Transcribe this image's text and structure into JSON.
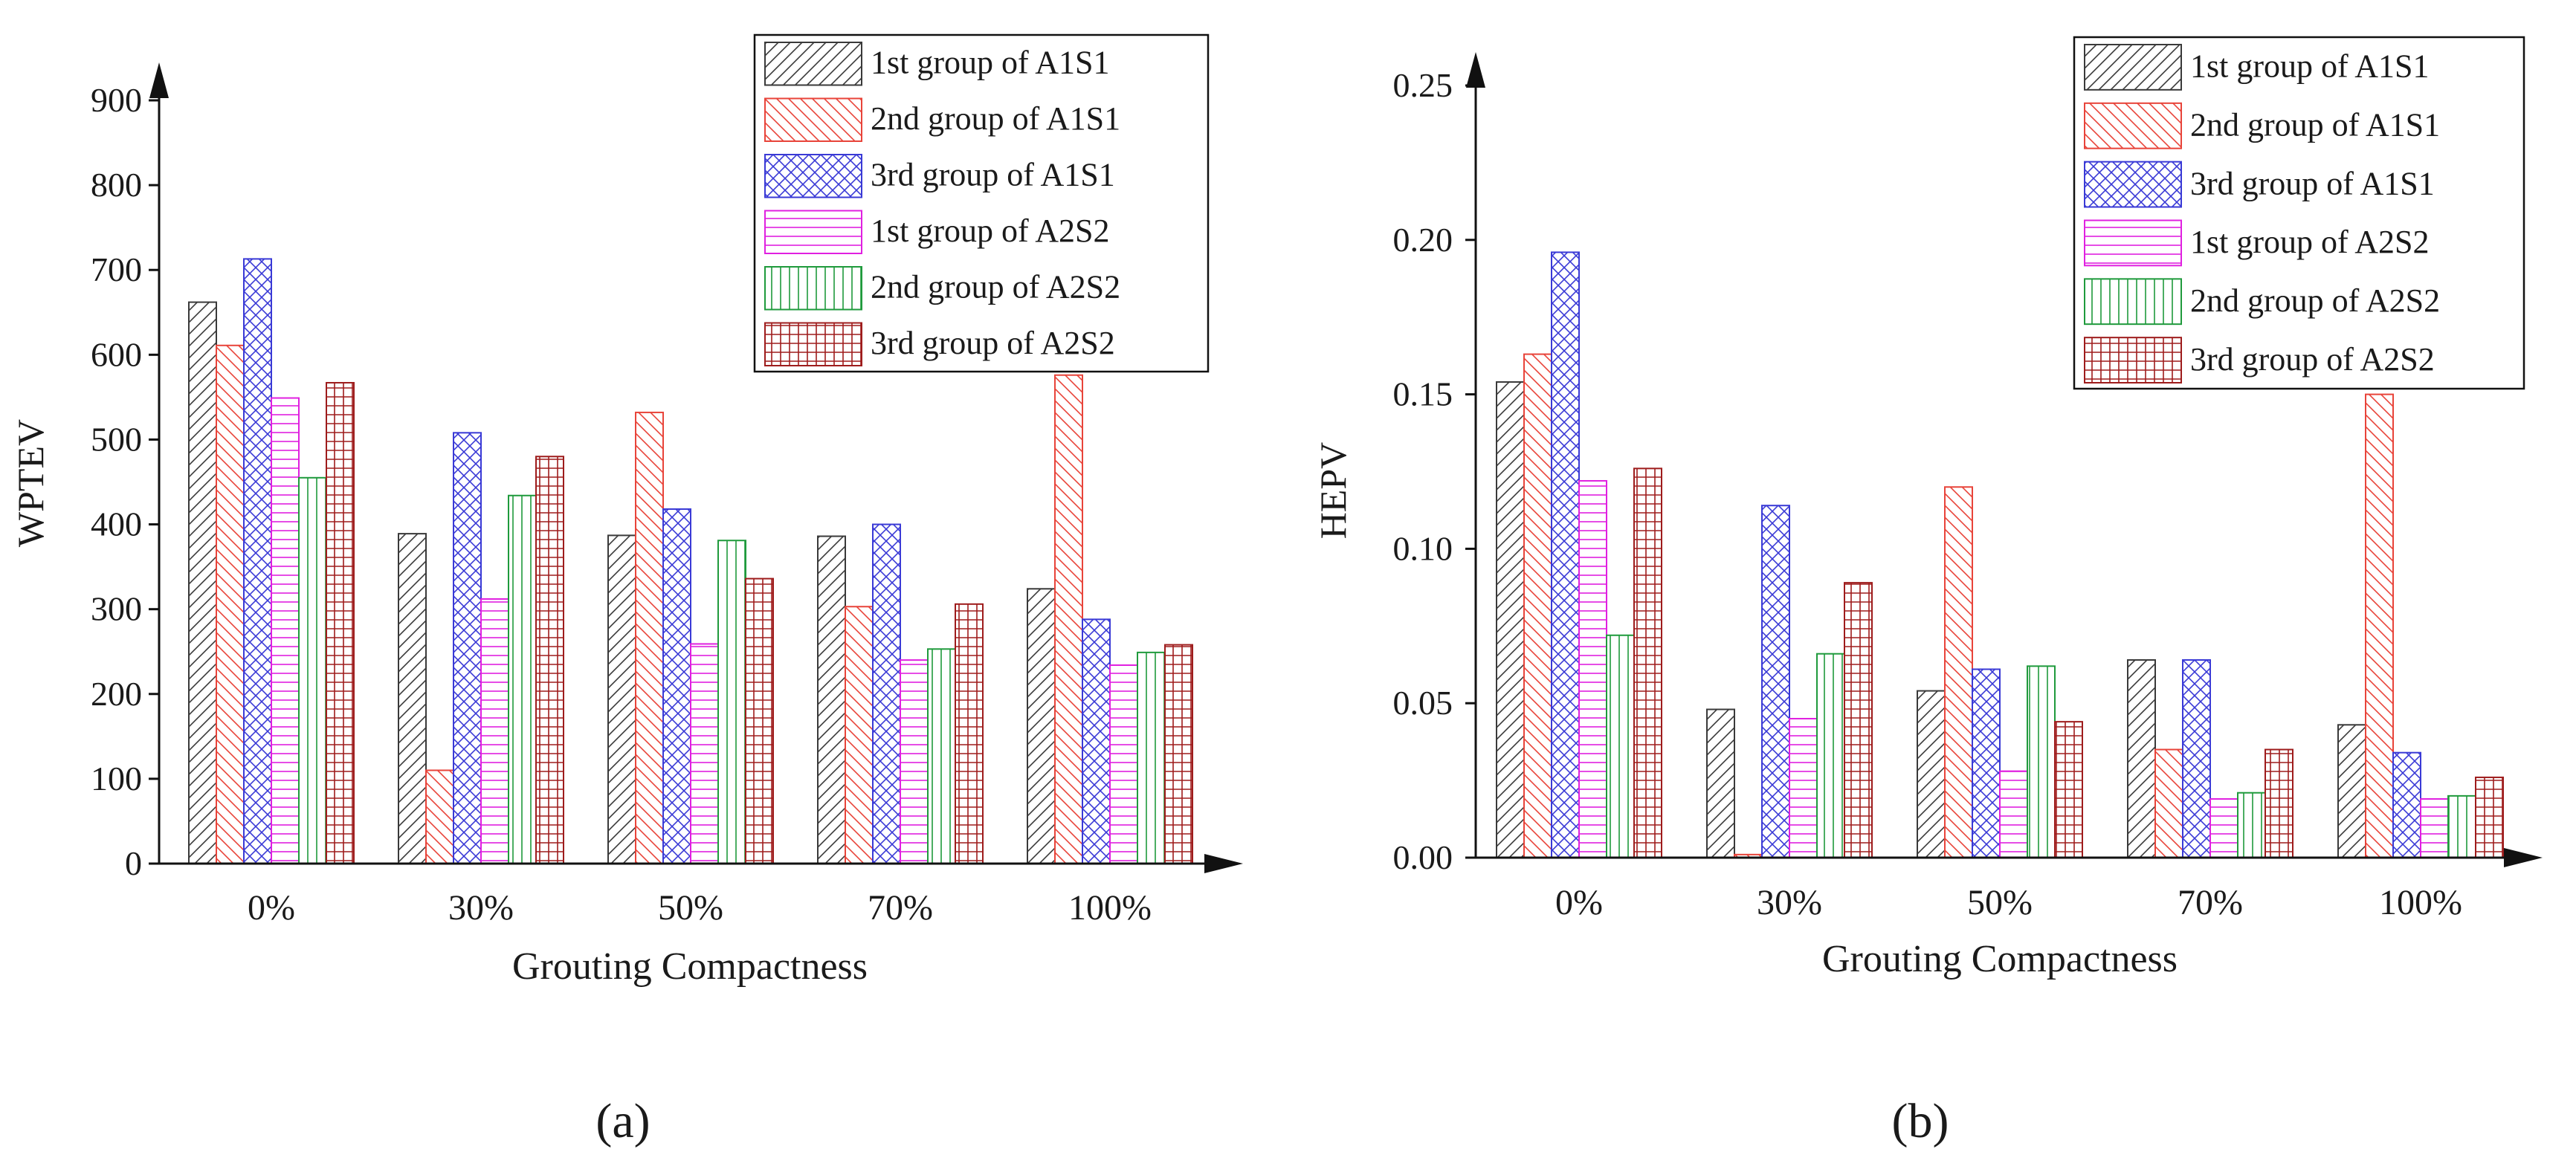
{
  "colors": {
    "axis": "#111111",
    "text": "#1a1a1a",
    "series": [
      "#3a3a3a",
      "#e8443a",
      "#3a3ad6",
      "#e020e0",
      "#1f9a3c",
      "#9e1c1c"
    ]
  },
  "chart_data": [
    {
      "type": "bar",
      "panel_label": "(a)",
      "xlabel": "Grouting Compactness",
      "ylabel": "WPTEV",
      "categories": [
        "0%",
        "30%",
        "50%",
        "70%",
        "100%"
      ],
      "ylim": [
        0,
        900
      ],
      "yticks": [
        "0",
        "100",
        "200",
        "300",
        "400",
        "500",
        "600",
        "700",
        "800",
        "900"
      ],
      "yticks_values": [
        0,
        100,
        200,
        300,
        400,
        500,
        600,
        700,
        800,
        900
      ],
      "legend_position": "top-right",
      "series": [
        {
          "name": "1st group of A1S1",
          "pattern": "diag-up",
          "values": [
            662,
            389,
            387,
            386,
            324
          ]
        },
        {
          "name": "2nd group of A1S1",
          "pattern": "diag-down",
          "values": [
            611,
            110,
            532,
            303,
            576
          ]
        },
        {
          "name": "3rd group of A1S1",
          "pattern": "crosshatch",
          "values": [
            713,
            508,
            418,
            400,
            288
          ]
        },
        {
          "name": "1st group of A2S2",
          "pattern": "horizontal",
          "values": [
            549,
            312,
            259,
            240,
            234
          ]
        },
        {
          "name": "2nd group of A2S2",
          "pattern": "vertical",
          "values": [
            455,
            434,
            381,
            253,
            249
          ]
        },
        {
          "name": "3rd group of A2S2",
          "pattern": "grid",
          "values": [
            567,
            480,
            336,
            306,
            258
          ]
        }
      ]
    },
    {
      "type": "bar",
      "panel_label": "(b)",
      "xlabel": "Grouting Compactness",
      "ylabel": "HEPV",
      "categories": [
        "0%",
        "30%",
        "50%",
        "70%",
        "100%"
      ],
      "ylim": [
        0,
        0.25
      ],
      "yticks": [
        "0.00",
        "0.05",
        "0.10",
        "0.15",
        "0.20",
        "0.25"
      ],
      "yticks_values": [
        0,
        0.05,
        0.1,
        0.15,
        0.2,
        0.25
      ],
      "legend_position": "top-right",
      "series": [
        {
          "name": "1st group of A1S1",
          "pattern": "diag-up",
          "values": [
            0.154,
            0.048,
            0.054,
            0.064,
            0.043
          ]
        },
        {
          "name": "2nd group of A1S1",
          "pattern": "diag-down",
          "values": [
            0.163,
            0.001,
            0.12,
            0.035,
            0.15
          ]
        },
        {
          "name": "3rd group of A1S1",
          "pattern": "crosshatch",
          "values": [
            0.196,
            0.114,
            0.061,
            0.064,
            0.034
          ]
        },
        {
          "name": "1st group of A2S2",
          "pattern": "horizontal",
          "values": [
            0.122,
            0.045,
            0.028,
            0.019,
            0.019
          ]
        },
        {
          "name": "2nd group of A2S2",
          "pattern": "vertical",
          "values": [
            0.072,
            0.066,
            0.062,
            0.021,
            0.02
          ]
        },
        {
          "name": "3rd group of A2S2",
          "pattern": "grid",
          "values": [
            0.126,
            0.089,
            0.044,
            0.035,
            0.026
          ]
        }
      ]
    }
  ]
}
